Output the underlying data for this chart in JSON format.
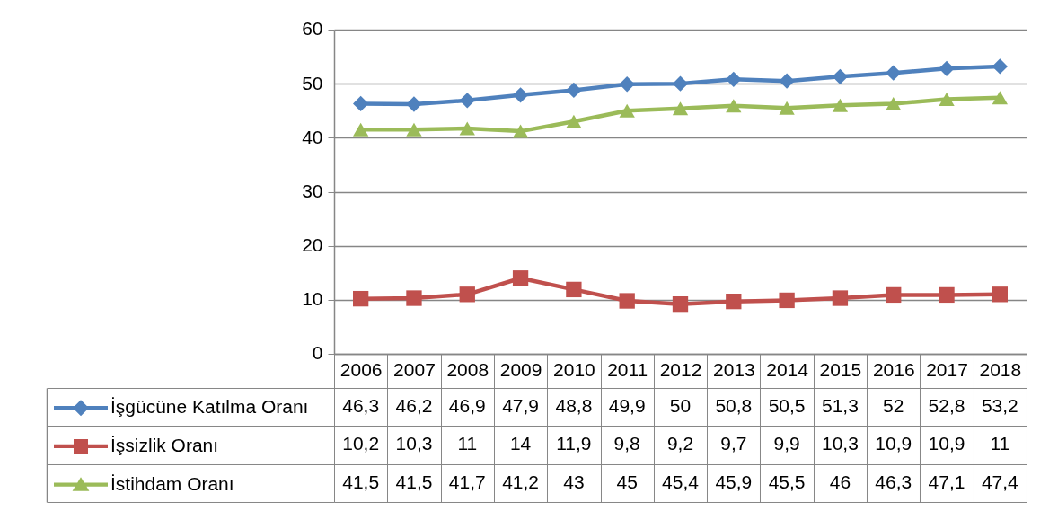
{
  "chart_data": {
    "type": "line",
    "categories": [
      "2006",
      "2007",
      "2008",
      "2009",
      "2010",
      "2011",
      "2012",
      "2013",
      "2014",
      "2015",
      "2016",
      "2017",
      "2018"
    ],
    "series": [
      {
        "name": "İşgücüne Katılma Oranı",
        "color": "#4f81bd",
        "marker": "diamond",
        "values": [
          46.3,
          46.2,
          46.9,
          47.9,
          48.8,
          49.9,
          50,
          50.8,
          50.5,
          51.3,
          52,
          52.8,
          53.2
        ],
        "value_labels": [
          "46,3",
          "46,2",
          "46,9",
          "47,9",
          "48,8",
          "49,9",
          "50",
          "50,8",
          "50,5",
          "51,3",
          "52",
          "52,8",
          "53,2"
        ]
      },
      {
        "name": "İşsizlik Oranı",
        "color": "#c0504d",
        "marker": "square",
        "values": [
          10.2,
          10.3,
          11,
          14,
          11.9,
          9.8,
          9.2,
          9.7,
          9.9,
          10.3,
          10.9,
          10.9,
          11
        ],
        "value_labels": [
          "10,2",
          "10,3",
          "11",
          "14",
          "11,9",
          "9,8",
          "9,2",
          "9,7",
          "9,9",
          "10,3",
          "10,9",
          "10,9",
          "11"
        ]
      },
      {
        "name": "İstihdam Oranı",
        "color": "#9bbb59",
        "marker": "triangle",
        "values": [
          41.5,
          41.5,
          41.7,
          41.2,
          43,
          45,
          45.4,
          45.9,
          45.5,
          46,
          46.3,
          47.1,
          47.4
        ],
        "value_labels": [
          "41,5",
          "41,5",
          "41,7",
          "41,2",
          "43",
          "45",
          "45,4",
          "45,9",
          "45,5",
          "46",
          "46,3",
          "47,1",
          "47,4"
        ]
      }
    ],
    "ylim": [
      0,
      60
    ],
    "yticks": [
      0,
      10,
      20,
      30,
      40,
      50,
      60
    ],
    "grid": "y",
    "legend": "bottom left",
    "line_style": "solid"
  }
}
